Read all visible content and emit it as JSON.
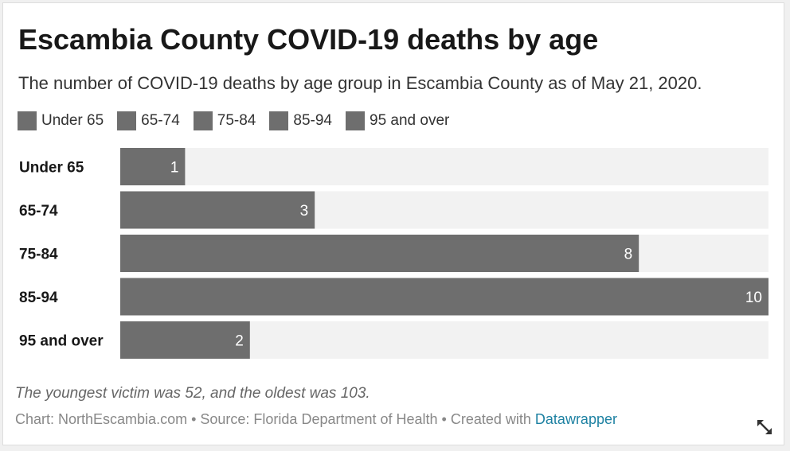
{
  "title": "Escambia County COVID-19 deaths by age",
  "subtitle": "The number of COVID-19 deaths by age group in Escambia County as of May 21, 2020.",
  "legend": [
    "Under 65",
    "65-74",
    "75-84",
    "85-94",
    "95 and over"
  ],
  "colors": {
    "bar": "#6e6e6e",
    "track": "#f2f2f2",
    "value_text": "#ffffff",
    "link": "#1d81a2"
  },
  "chart_data": {
    "type": "bar",
    "orientation": "horizontal",
    "categories": [
      "Under 65",
      "65-74",
      "75-84",
      "85-94",
      "95 and over"
    ],
    "values": [
      1,
      3,
      8,
      10,
      2
    ],
    "title": "Escambia County COVID-19 deaths by age",
    "subtitle": "The number of COVID-19 deaths by age group in Escambia County as of May 21, 2020.",
    "xlim": [
      0,
      10
    ],
    "grid": false,
    "legend_position": "top-left",
    "data_labels": true
  },
  "note": "The youngest victim was 52, and the oldest was 103.",
  "footer": {
    "chart_credit": "Chart: NorthEscambia.com",
    "separator": " • ",
    "source": "Source: Florida Department of Health",
    "created_with": "Created with ",
    "tool": "Datawrapper"
  },
  "icons": {
    "expand": "expand-arrows-icon"
  }
}
